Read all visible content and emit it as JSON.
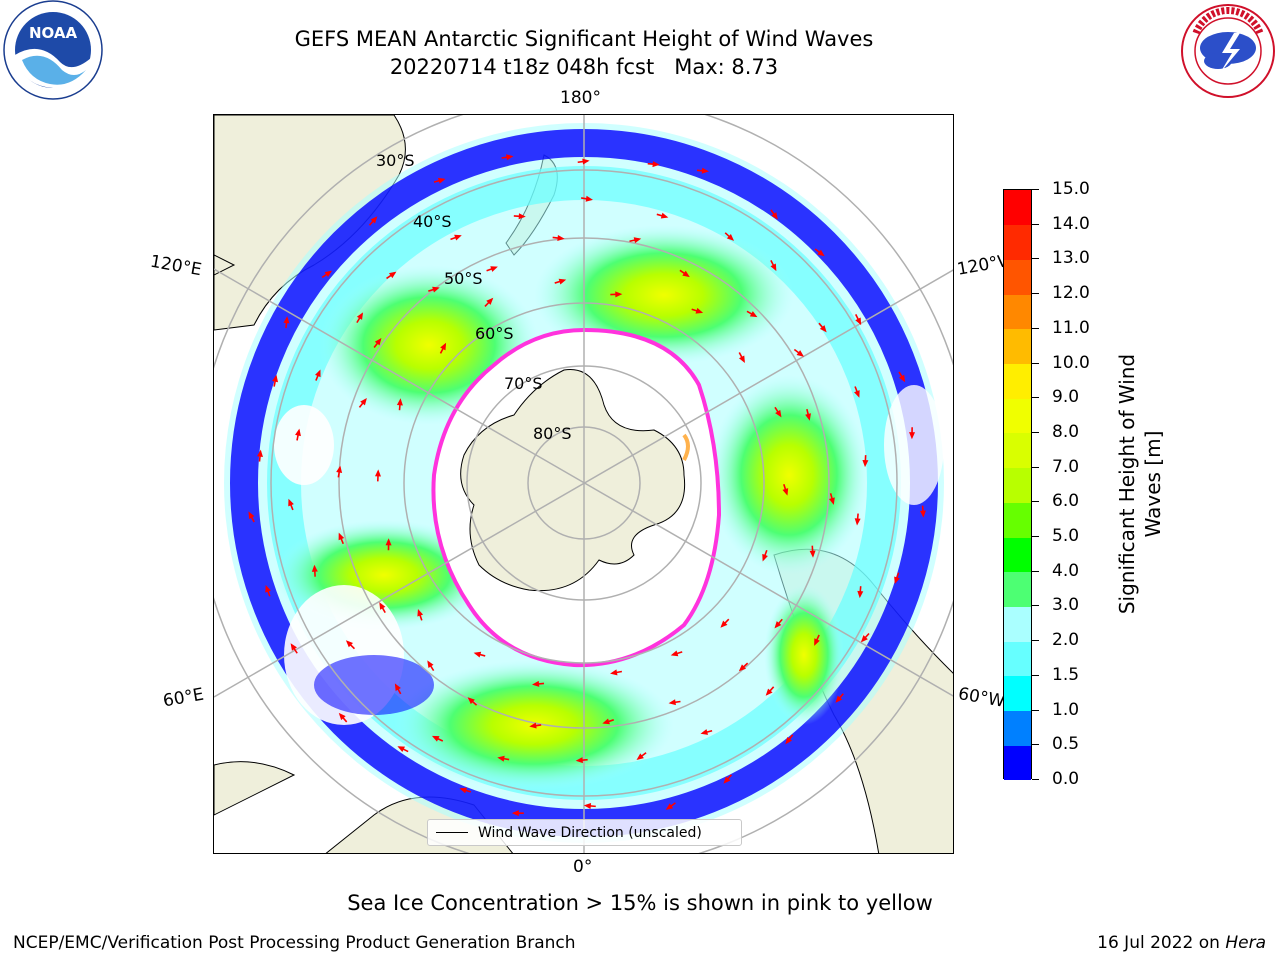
{
  "title": {
    "line1": "GEFS MEAN Antarctic Significant Height of Wind Waves",
    "line2": "20220714 t18z 048h fcst   Max: 8.73"
  },
  "logos": {
    "noaa": {
      "name": "noaa-logo",
      "text": "NOAA",
      "ring_text": "NATIONAL OCEANIC AND ATMOSPHERIC ADMINISTRATION · U.S. DEPARTMENT OF COMMERCE"
    },
    "nws": {
      "name": "nws-logo",
      "ring_text": "NATIONAL WEATHER SERVICE"
    }
  },
  "map": {
    "lon_labels": {
      "top": "180°",
      "bottom": "0°",
      "upper_left": "120°E",
      "upper_right": "120°W",
      "lower_left": "60°E",
      "lower_right": "60°W"
    },
    "lat_labels": [
      "30°S",
      "40°S",
      "50°S",
      "60°S",
      "70°S",
      "80°S"
    ],
    "land_color": "#efefdb",
    "ice_edge_color": "#ff33dd",
    "ice_inner_color": "#ffb24d",
    "arrow_color": "#ff0000",
    "grid_color": "#b0b0b0"
  },
  "legend": {
    "label": "Wind Wave Direction (unscaled)"
  },
  "colorbar": {
    "title_line1": "Significant Height of Wind",
    "title_line2": "Waves [m]",
    "ticks": [
      "0.0",
      "0.5",
      "1.0",
      "1.5",
      "2.0",
      "3.0",
      "4.0",
      "5.0",
      "6.0",
      "7.0",
      "8.0",
      "9.0",
      "10.0",
      "11.0",
      "12.0",
      "13.0",
      "14.0",
      "15.0"
    ],
    "colors": [
      "#0000ff",
      "#0080ff",
      "#00ffff",
      "#66ffff",
      "#aaffff",
      "#4dff73",
      "#00ff00",
      "#66ff00",
      "#b8ff00",
      "#d9ff00",
      "#f0ff00",
      "#ffee00",
      "#ffbb00",
      "#ff8800",
      "#ff5500",
      "#ff2a00",
      "#ff0000"
    ]
  },
  "ice_note": "Sea Ice Concentration > 15% is shown in pink to yellow",
  "footer": {
    "left": "NCEP/EMC/Verification Post Processing Product Generation Branch",
    "right_prefix": "16 Jul 2022 on ",
    "right_machine": "Hera"
  }
}
